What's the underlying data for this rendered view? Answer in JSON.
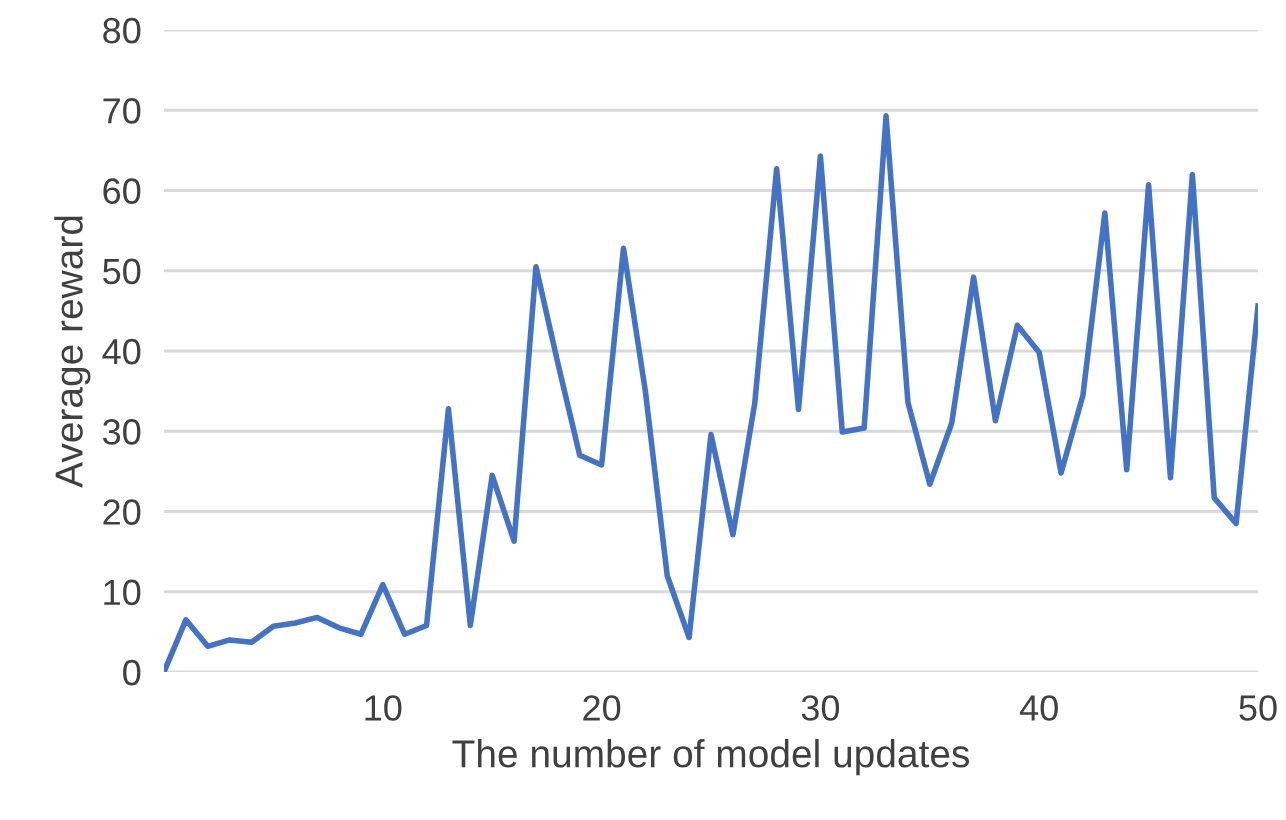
{
  "chart_data": {
    "type": "line",
    "xlabel": "The number of model updates",
    "ylabel": "Average reward",
    "x": [
      0,
      1,
      2,
      3,
      4,
      5,
      6,
      7,
      8,
      9,
      10,
      11,
      12,
      13,
      14,
      15,
      16,
      17,
      18,
      19,
      20,
      21,
      22,
      23,
      24,
      25,
      26,
      27,
      28,
      29,
      30,
      31,
      32,
      33,
      34,
      35,
      36,
      37,
      38,
      39,
      40,
      41,
      42,
      43,
      44,
      45,
      46,
      47,
      48,
      49,
      50
    ],
    "series": [
      {
        "color": "#4472c4",
        "values": [
          0,
          6.5,
          3.2,
          4,
          3.7,
          5.7,
          6.1,
          6.8,
          5.5,
          4.7,
          10.9,
          4.7,
          5.8,
          32.8,
          5.8,
          24.5,
          16.3,
          50.5,
          38.5,
          27,
          25.8,
          52.8,
          35,
          12,
          4.3,
          29.6,
          17.1,
          33.5,
          62.7,
          32.7,
          64.3,
          29.9,
          30.4,
          69.3,
          33.6,
          23.4,
          31,
          49.2,
          31.3,
          43.2,
          39.8,
          24.8,
          34.5,
          57.2,
          25.2,
          60.7,
          24.2,
          62,
          21.7,
          18.5,
          45.6
        ]
      }
    ],
    "xlim": [
      0,
      50
    ],
    "xticks": [
      10,
      20,
      30,
      40,
      50
    ],
    "ylim": [
      0,
      80
    ],
    "yticks": [
      0,
      10,
      20,
      30,
      40,
      50,
      60,
      70,
      80
    ],
    "grid": "y"
  }
}
